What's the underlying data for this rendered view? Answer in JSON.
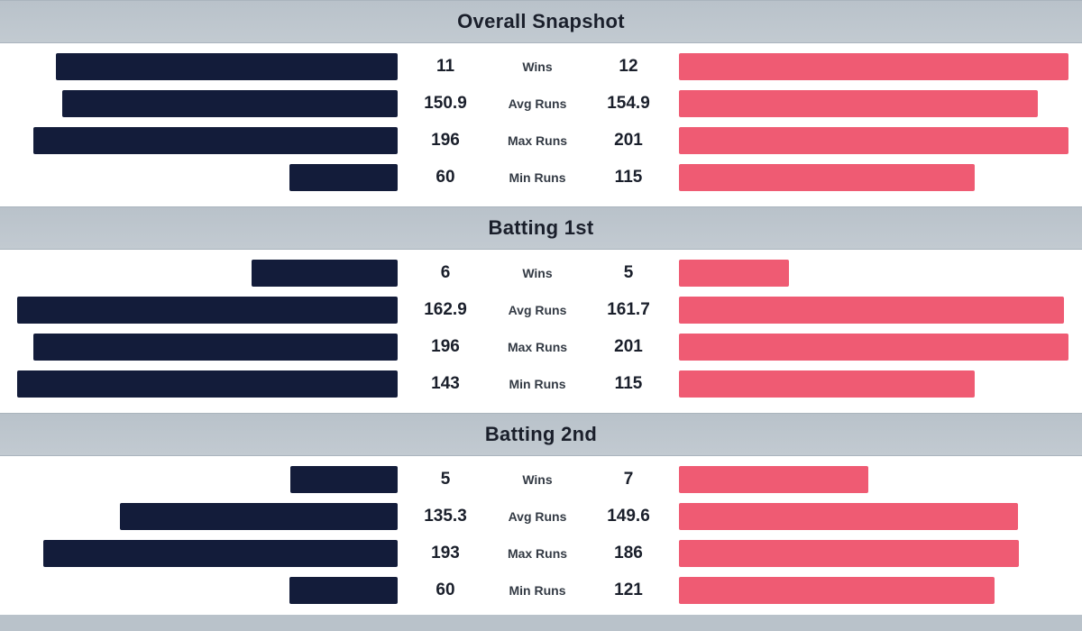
{
  "chart_data": {
    "type": "bar",
    "orientation": "horizontal-diverging",
    "colors": {
      "left": "#131c3a",
      "right": "#ef5b73",
      "header": "#bec6cd"
    },
    "sections": [
      {
        "title": "Overall Snapshot",
        "rows": [
          {
            "metric": "Wins",
            "left": 11,
            "right": 12,
            "left_label": "11",
            "right_label": "12"
          },
          {
            "metric": "Avg Runs",
            "left": 150.9,
            "right": 154.9,
            "left_label": "150.9",
            "right_label": "154.9"
          },
          {
            "metric": "Max Runs",
            "left": 196,
            "right": 201,
            "left_label": "196",
            "right_label": "201"
          },
          {
            "metric": "Min Runs",
            "left": 60,
            "right": 115,
            "left_label": "60",
            "right_label": "115"
          }
        ]
      },
      {
        "title": "Batting 1st",
        "rows": [
          {
            "metric": "Wins",
            "left": 6,
            "right": 5,
            "left_label": "6",
            "right_label": "5"
          },
          {
            "metric": "Avg Runs",
            "left": 162.9,
            "right": 161.7,
            "left_label": "162.9",
            "right_label": "161.7"
          },
          {
            "metric": "Max Runs",
            "left": 196,
            "right": 201,
            "left_label": "196",
            "right_label": "201"
          },
          {
            "metric": "Min Runs",
            "left": 143,
            "right": 115,
            "left_label": "143",
            "right_label": "115"
          }
        ]
      },
      {
        "title": "Batting 2nd",
        "rows": [
          {
            "metric": "Wins",
            "left": 5,
            "right": 7,
            "left_label": "5",
            "right_label": "7"
          },
          {
            "metric": "Avg Runs",
            "left": 135.3,
            "right": 149.6,
            "left_label": "135.3",
            "right_label": "149.6"
          },
          {
            "metric": "Max Runs",
            "left": 193,
            "right": 186,
            "left_label": "193",
            "right_label": "186"
          },
          {
            "metric": "Min Runs",
            "left": 60,
            "right": 121,
            "left_label": "60",
            "right_label": "121"
          }
        ]
      }
    ]
  }
}
